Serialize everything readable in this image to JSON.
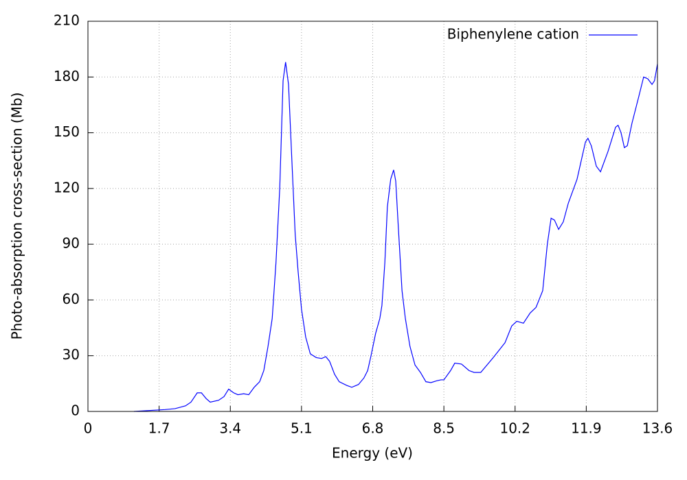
{
  "chart_data": {
    "type": "line",
    "x_label": "Energy (eV)",
    "y_label": "Photo-absorption cross-section (Mb)",
    "x": [
      1.1,
      1.84,
      2.08,
      2.33,
      2.46,
      2.61,
      2.71,
      2.82,
      2.92,
      3.12,
      3.25,
      3.36,
      3.48,
      3.58,
      3.72,
      3.84,
      3.97,
      4.1,
      4.2,
      4.3,
      4.4,
      4.49,
      4.58,
      4.66,
      4.72,
      4.79,
      4.87,
      4.95,
      5.02,
      5.1,
      5.2,
      5.31,
      5.45,
      5.58,
      5.68,
      5.77,
      5.89,
      6.0,
      6.18,
      6.3,
      6.46,
      6.59,
      6.68,
      6.76,
      6.87,
      6.97,
      7.02,
      7.09,
      7.15,
      7.23,
      7.3,
      7.35,
      7.41,
      7.5,
      7.58,
      7.69,
      7.81,
      7.94,
      8.07,
      8.19,
      8.33,
      8.43,
      8.5,
      8.66,
      8.76,
      8.92,
      9.1,
      9.22,
      9.38,
      9.68,
      9.96,
      10.12,
      10.24,
      10.4,
      10.56,
      10.7,
      10.86,
      10.97,
      11.06,
      11.14,
      11.24,
      11.35,
      11.47,
      11.68,
      11.88,
      11.94,
      12.02,
      12.14,
      12.24,
      12.42,
      12.6,
      12.66,
      12.73,
      12.81,
      12.88,
      12.99,
      13.16,
      13.27,
      13.37,
      13.47,
      13.53,
      13.6
    ],
    "series": [
      {
        "name": "Biphenylene cation",
        "color": "#0000ff",
        "values": [
          0,
          1,
          1.5,
          3,
          5,
          10,
          10,
          7,
          5,
          6,
          8,
          12,
          10,
          9,
          9.5,
          9,
          13,
          16,
          22,
          35,
          50,
          80,
          120,
          178,
          188,
          176,
          135,
          95,
          75,
          55,
          40,
          31,
          29,
          28.5,
          29.5,
          27,
          20,
          16,
          14,
          13,
          14.5,
          18,
          22,
          30,
          42,
          50,
          57,
          80,
          110,
          125,
          130,
          124,
          100,
          65,
          50,
          35,
          25,
          21,
          16,
          15.5,
          16.5,
          17,
          17,
          22,
          26,
          25.5,
          22,
          21,
          21,
          29,
          37,
          46,
          48.5,
          47.5,
          53,
          56,
          65,
          90,
          104,
          103,
          98,
          102,
          112,
          125,
          145,
          147,
          143,
          132,
          129,
          140,
          153,
          154,
          150,
          142,
          143,
          155,
          170,
          180,
          179,
          176,
          178,
          187
        ]
      }
    ],
    "xlim": [
      0,
      13.6
    ],
    "xticks": [
      0,
      1.7,
      3.4,
      5.1,
      6.8,
      8.5,
      10.2,
      11.9,
      13.6
    ],
    "ylim": [
      0,
      210
    ],
    "yticks": [
      0,
      30,
      60,
      90,
      120,
      150,
      180,
      210
    ],
    "grid": true,
    "legend": "top-right"
  }
}
